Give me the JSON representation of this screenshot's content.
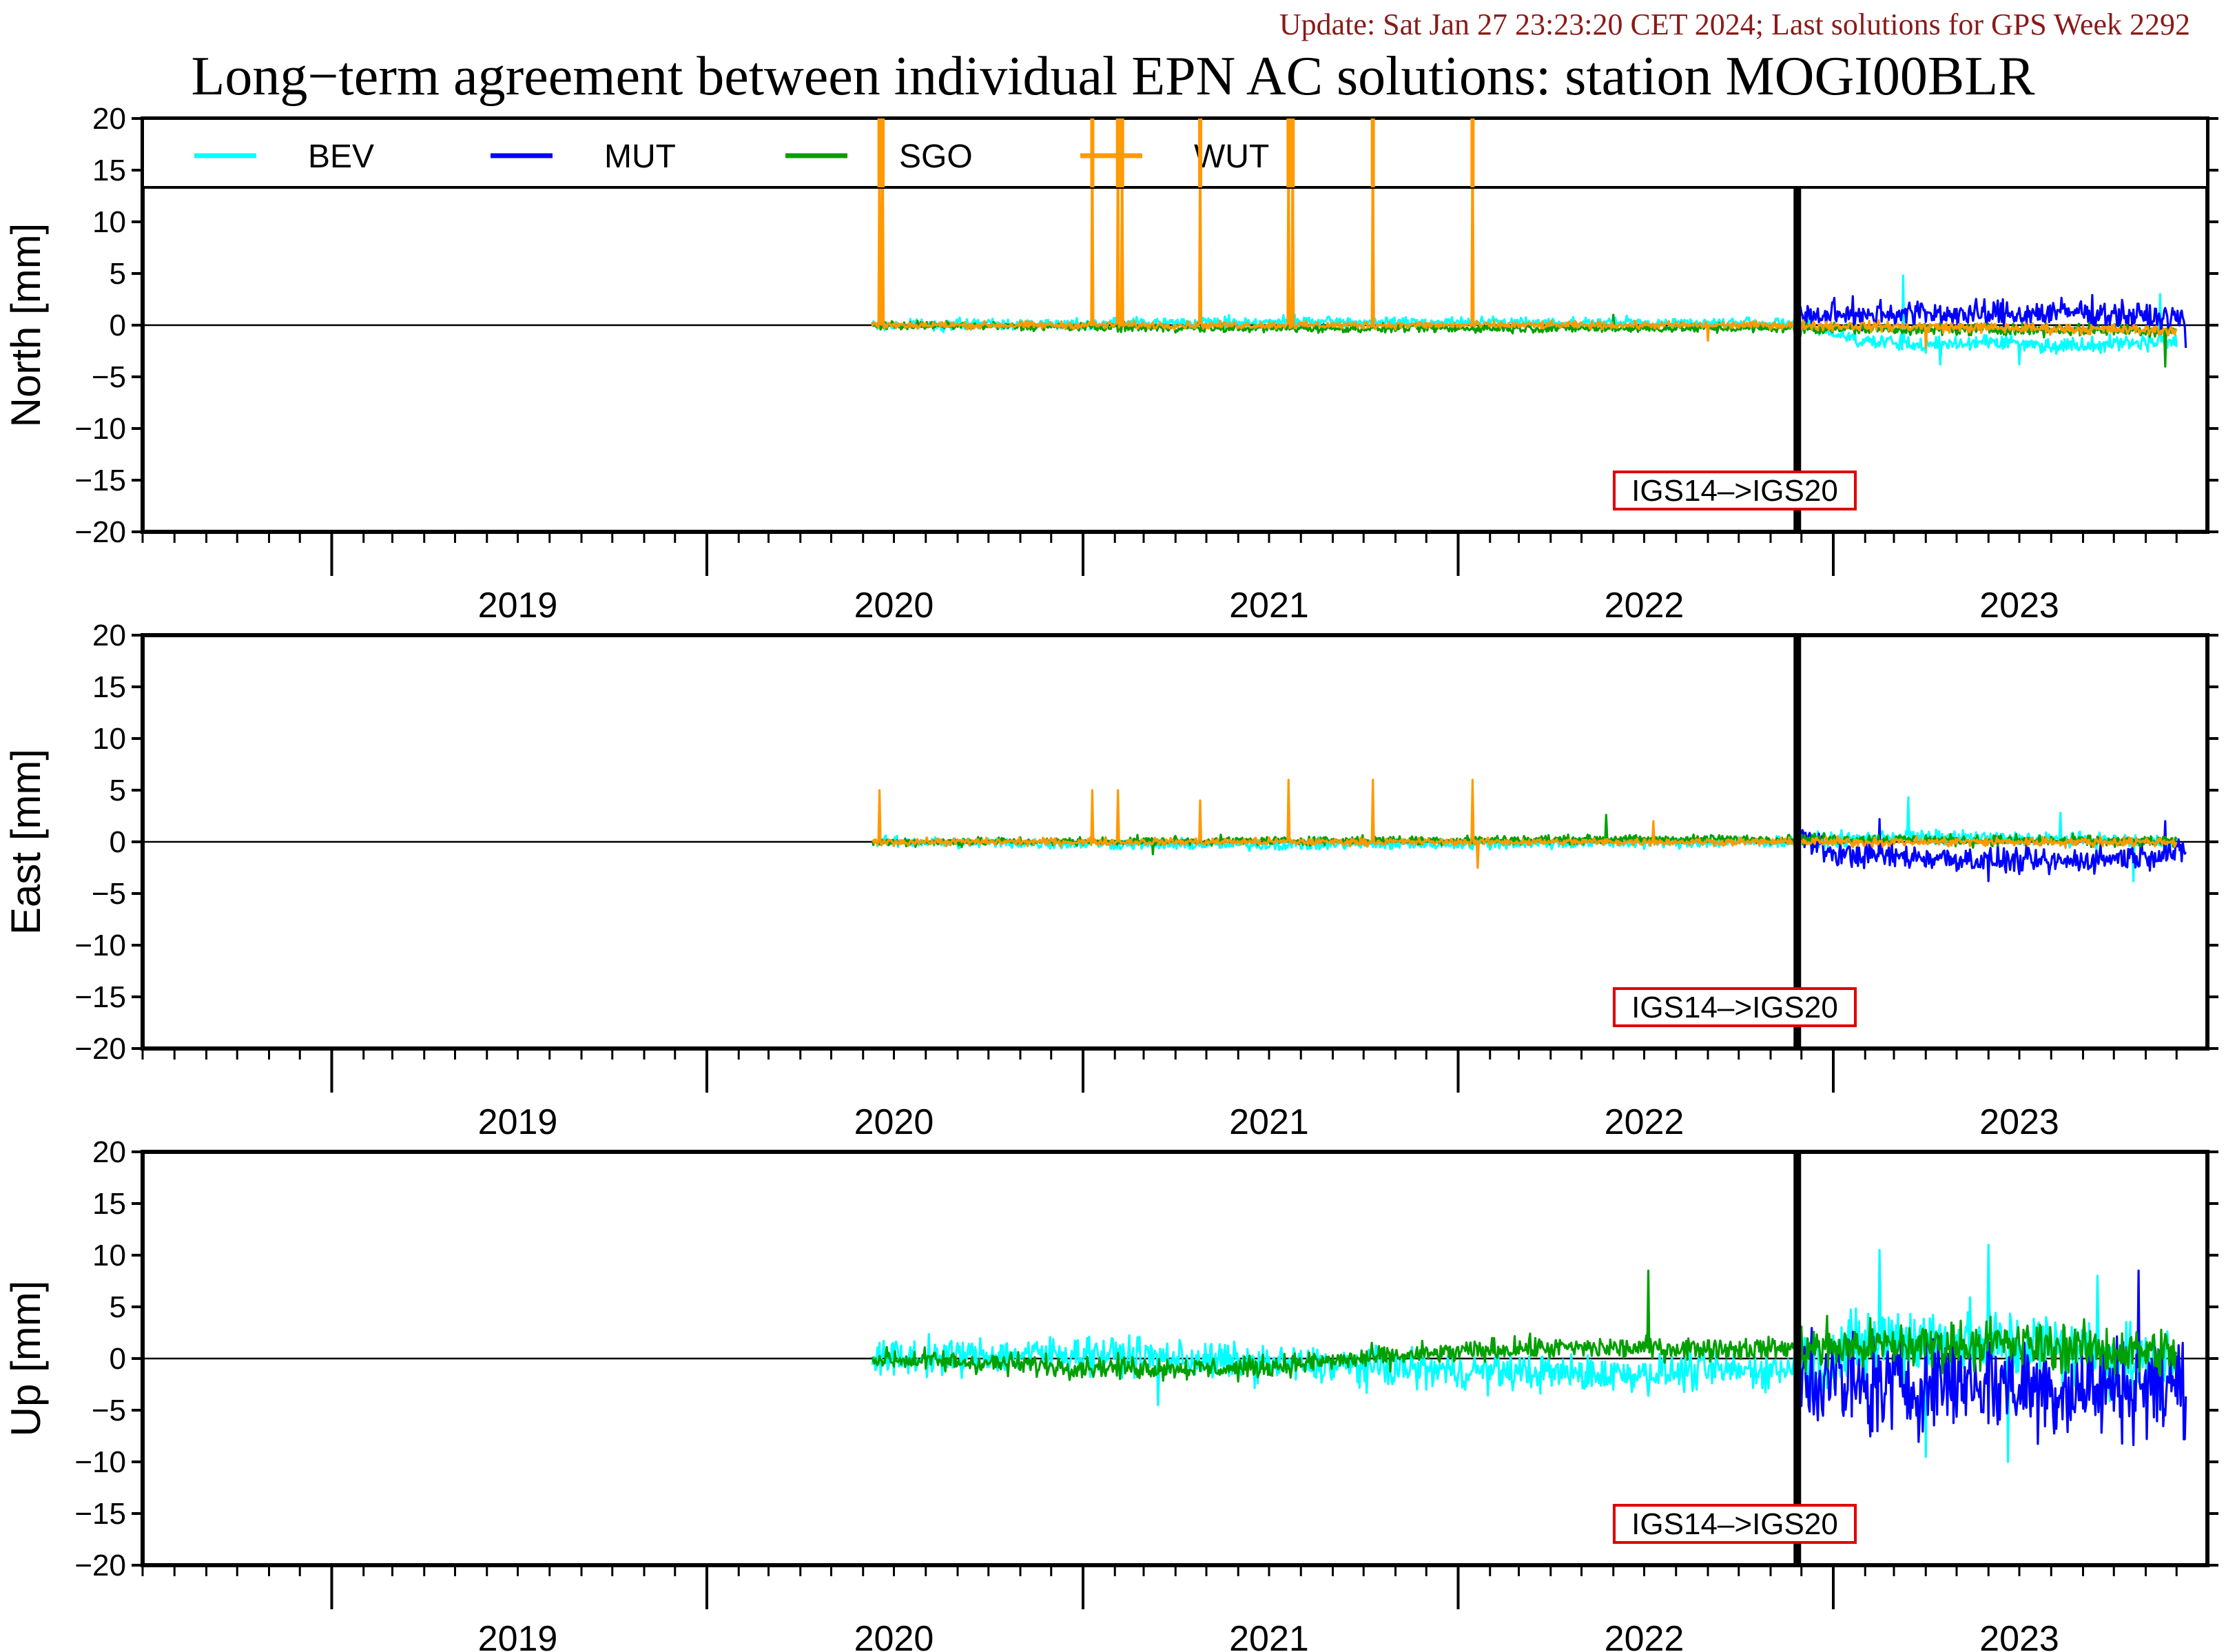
{
  "header": {
    "update": "Update: Sat Jan 27 23:23:20 CET 2024; Last solutions for GPS Week 2292",
    "title": "Long−term agreement between individual EPN AC solutions: station MOGI00BLR"
  },
  "chart_data": {
    "type": "line",
    "xlim": [
      "2018-07-01",
      "2023-12-31"
    ],
    "ylim": [
      -20,
      20
    ],
    "ytick_labels": [
      "20",
      "15",
      "10",
      "5",
      "0",
      "−5",
      "−10",
      "−15",
      "−20"
    ],
    "year_labels": [
      "2019",
      "2020",
      "2021",
      "2022",
      "2023"
    ],
    "reference_change": {
      "date": "2022-11-27",
      "label": "IGS14–>IGS20"
    },
    "legend": {
      "placement": "top",
      "entries": [
        "BEV",
        "MUT",
        "SGO",
        "WUT"
      ]
    },
    "colors": {
      "BEV": "#00ffff",
      "MUT": "#0000ff",
      "SGO": "#00a000",
      "WUT": "#ff9900",
      "change_label_border": "#e00000"
    },
    "panels": [
      {
        "ylabel": "North [mm]",
        "series": [
          {
            "name": "BEV",
            "start": "2020-06-10",
            "end": "2023-12-01",
            "points": [
              [
                "2020-06-10",
                0
              ],
              [
                "2021-06-01",
                0.3
              ],
              [
                "2022-11-27",
                0.2
              ],
              [
                "2023-02-01",
                -1.5
              ],
              [
                "2023-04-01",
                -2
              ],
              [
                "2023-06-01",
                -1.5
              ],
              [
                "2023-08-01",
                -2
              ],
              [
                "2023-12-01",
                -1.5
              ]
            ],
            "spikes": [
              [
                "2023-03-10",
                4.8
              ],
              [
                "2023-04-15",
                -3.8
              ],
              [
                "2023-07-01",
                -3.8
              ],
              [
                "2023-11-15",
                3
              ]
            ]
          },
          {
            "name": "MUT",
            "start": "2022-11-27",
            "end": "2023-12-10",
            "points": [
              [
                "2022-11-27",
                0.8
              ],
              [
                "2023-03-01",
                1.2
              ],
              [
                "2023-06-01",
                1
              ],
              [
                "2023-09-01",
                1.3
              ],
              [
                "2023-12-10",
                0.5
              ]
            ],
            "spikes": [
              [
                "2023-01-20",
                2.8
              ],
              [
                "2023-06-15",
                2.5
              ],
              [
                "2023-12-10",
                -2.2
              ]
            ]
          },
          {
            "name": "SGO",
            "start": "2020-06-10",
            "end": "2023-12-01",
            "points": [
              [
                "2020-06-10",
                0
              ],
              [
                "2021-06-01",
                -0.3
              ],
              [
                "2022-11-27",
                -0.3
              ],
              [
                "2023-12-01",
                -0.5
              ]
            ],
            "spikes": [
              [
                "2022-06-01",
                1
              ],
              [
                "2023-11-20",
                -4
              ]
            ]
          },
          {
            "name": "WUT",
            "start": "2020-06-10",
            "end": "2023-12-01",
            "points": [
              [
                "2020-06-10",
                0
              ],
              [
                "2022-11-27",
                0
              ],
              [
                "2023-12-01",
                -0.5
              ]
            ],
            "spikes": [
              [
                "2020-06-17",
                20
              ],
              [
                "2020-06-20",
                20
              ],
              [
                "2021-01-10",
                20
              ],
              [
                "2021-02-04",
                20
              ],
              [
                "2021-02-08",
                20
              ],
              [
                "2021-04-25",
                20
              ],
              [
                "2021-07-20",
                20
              ],
              [
                "2021-07-24",
                20
              ],
              [
                "2021-10-10",
                20
              ],
              [
                "2022-01-15",
                20
              ],
              [
                "2022-09-01",
                -1.5
              ],
              [
                "2023-04-01",
                -2.2
              ]
            ]
          }
        ]
      },
      {
        "ylabel": "East [mm]",
        "series": [
          {
            "name": "BEV",
            "start": "2020-06-10",
            "end": "2023-12-01",
            "points": [
              [
                "2020-06-10",
                0
              ],
              [
                "2021-06-01",
                -0.3
              ],
              [
                "2022-11-27",
                0
              ],
              [
                "2023-03-01",
                0.5
              ],
              [
                "2023-12-01",
                0
              ]
            ],
            "spikes": [
              [
                "2023-03-15",
                4.3
              ],
              [
                "2023-08-10",
                2.8
              ],
              [
                "2023-10-20",
                -3.8
              ]
            ]
          },
          {
            "name": "MUT",
            "start": "2022-11-27",
            "end": "2023-12-10",
            "points": [
              [
                "2022-11-27",
                0.8
              ],
              [
                "2023-01-01",
                -1.2
              ],
              [
                "2023-04-01",
                -1.5
              ],
              [
                "2023-08-01",
                -2
              ],
              [
                "2023-12-10",
                -1
              ]
            ],
            "spikes": [
              [
                "2023-02-15",
                2.2
              ],
              [
                "2023-06-01",
                -3.8
              ],
              [
                "2023-11-20",
                2
              ]
            ]
          },
          {
            "name": "SGO",
            "start": "2020-06-10",
            "end": "2023-12-01",
            "points": [
              [
                "2020-06-10",
                0
              ],
              [
                "2022-11-27",
                0.3
              ],
              [
                "2023-12-01",
                0
              ]
            ],
            "spikes": [
              [
                "2022-05-25",
                2.6
              ],
              [
                "2021-03-10",
                -1.2
              ]
            ]
          },
          {
            "name": "WUT",
            "start": "2020-06-10",
            "end": "2023-12-01",
            "points": [
              [
                "2020-06-10",
                0
              ],
              [
                "2022-11-27",
                0
              ],
              [
                "2023-12-01",
                0
              ]
            ],
            "spikes": [
              [
                "2020-06-17",
                5
              ],
              [
                "2021-01-10",
                5
              ],
              [
                "2021-02-04",
                5
              ],
              [
                "2021-04-25",
                4
              ],
              [
                "2021-07-20",
                6
              ],
              [
                "2021-10-10",
                6
              ],
              [
                "2022-01-15",
                6
              ],
              [
                "2022-07-10",
                2
              ],
              [
                "2022-01-20",
                -2.5
              ]
            ]
          }
        ]
      },
      {
        "ylabel": "Up [mm]",
        "series": [
          {
            "name": "BEV",
            "start": "2020-06-10",
            "end": "2023-12-01",
            "points": [
              [
                "2020-06-10",
                0
              ],
              [
                "2021-01-01",
                0.5
              ],
              [
                "2021-07-01",
                -0.5
              ],
              [
                "2022-01-01",
                -1.2
              ],
              [
                "2022-06-01",
                -1.5
              ],
              [
                "2022-11-27",
                -1
              ],
              [
                "2023-03-01",
                2
              ],
              [
                "2023-08-01",
                1
              ],
              [
                "2023-12-01",
                -1
              ]
            ],
            "spikes": [
              [
                "2021-03-15",
                -4.5
              ],
              [
                "2023-02-15",
                10.5
              ],
              [
                "2023-04-01",
                -9.5
              ],
              [
                "2023-06-01",
                11
              ],
              [
                "2023-06-20",
                -10
              ],
              [
                "2023-09-15",
                8
              ]
            ]
          },
          {
            "name": "MUT",
            "start": "2022-11-27",
            "end": "2023-12-10",
            "points": [
              [
                "2022-11-27",
                -1
              ],
              [
                "2023-02-01",
                -3
              ],
              [
                "2023-05-01",
                -2
              ],
              [
                "2023-08-01",
                -3
              ],
              [
                "2023-12-10",
                -2.5
              ]
            ],
            "spikes": [
              [
                "2023-01-10",
                -5
              ],
              [
                "2023-10-25",
                8.5
              ],
              [
                "2023-11-20",
                -5.5
              ]
            ]
          },
          {
            "name": "SGO",
            "start": "2020-06-10",
            "end": "2023-12-01",
            "points": [
              [
                "2020-06-10",
                0
              ],
              [
                "2021-01-01",
                -0.8
              ],
              [
                "2021-06-01",
                -1
              ],
              [
                "2021-10-01",
                0
              ],
              [
                "2022-03-01",
                1
              ],
              [
                "2022-11-27",
                1
              ],
              [
                "2023-06-01",
                1.5
              ],
              [
                "2023-12-01",
                0.5
              ]
            ],
            "spikes": [
              [
                "2022-07-05",
                8.5
              ]
            ]
          }
        ]
      }
    ]
  }
}
